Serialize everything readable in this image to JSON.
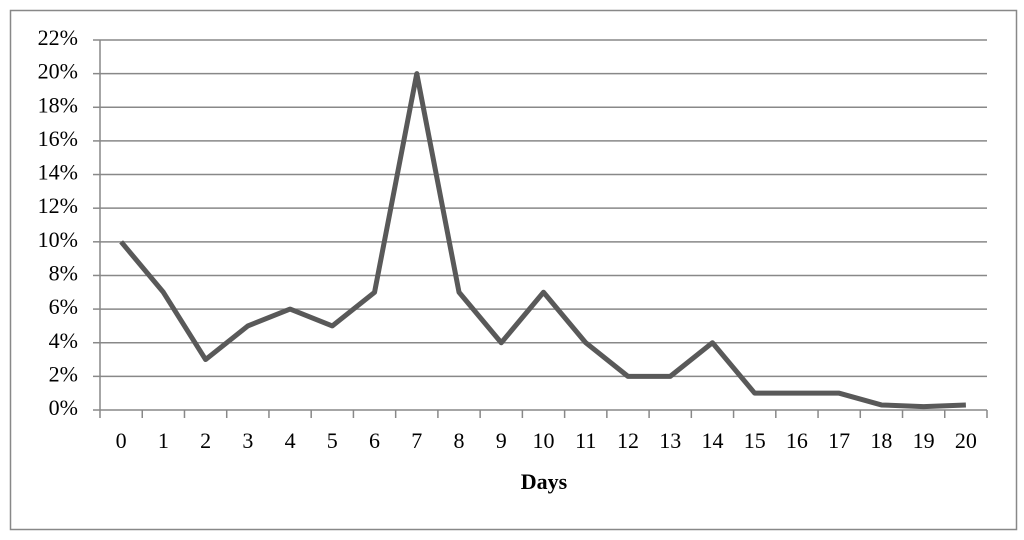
{
  "chart_data": {
    "type": "line",
    "x_label": "Days",
    "categories": [
      "0",
      "1",
      "2",
      "3",
      "4",
      "5",
      "6",
      "7",
      "8",
      "9",
      "10",
      "11",
      "12",
      "13",
      "14",
      "15",
      "16",
      "17",
      "18",
      "19",
      "20"
    ],
    "values": [
      10,
      7,
      3,
      5,
      6,
      5,
      7,
      20,
      7,
      4,
      7,
      4,
      2,
      2,
      4,
      1,
      1,
      1,
      0.3,
      0.2,
      0.3
    ],
    "color": "#595959",
    "ylim": [
      0,
      22
    ],
    "yticks": [
      {
        "value": 0,
        "label": "0%"
      },
      {
        "value": 2,
        "label": "2%"
      },
      {
        "value": 4,
        "label": "4%"
      },
      {
        "value": 6,
        "label": "6%"
      },
      {
        "value": 8,
        "label": "8%"
      },
      {
        "value": 10,
        "label": "10%"
      },
      {
        "value": 12,
        "label": "12%"
      },
      {
        "value": 14,
        "label": "14%"
      },
      {
        "value": 16,
        "label": "16%"
      },
      {
        "value": 18,
        "label": "18%"
      },
      {
        "value": 20,
        "label": "20%"
      },
      {
        "value": 22,
        "label": "22%"
      }
    ],
    "grid": true
  }
}
